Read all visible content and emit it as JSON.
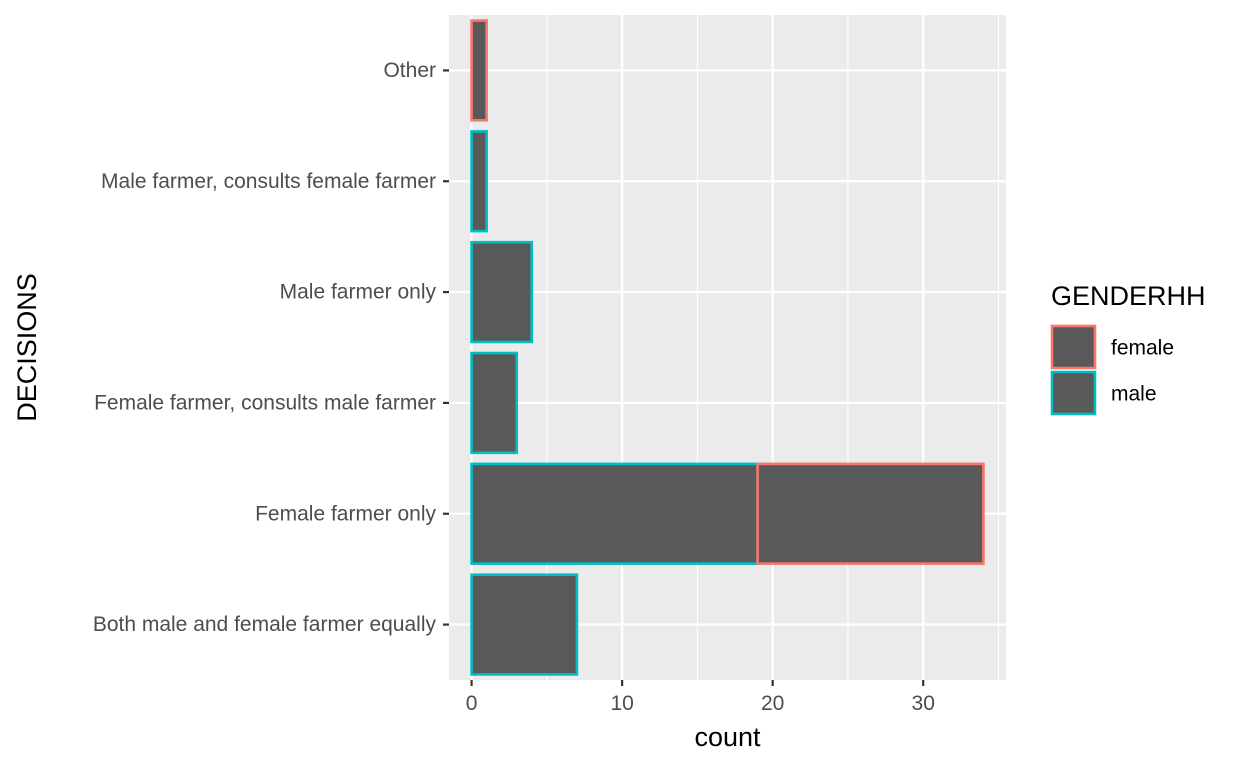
{
  "chart_data": {
    "type": "bar",
    "orientation": "horizontal",
    "stacked": true,
    "categories": [
      "Both male and female farmer equally",
      "Female farmer only",
      "Female farmer, consults male farmer",
      "Male farmer only",
      "Male farmer, consults female farmer",
      "Other"
    ],
    "series": [
      {
        "name": "male",
        "values": [
          7,
          19,
          3,
          4,
          1,
          0
        ]
      },
      {
        "name": "female",
        "values": [
          0,
          15,
          0,
          0,
          0,
          1
        ]
      }
    ],
    "stack_order": [
      "male",
      "female"
    ],
    "xlabel": "count",
    "ylabel": "DECISIONS",
    "xlim": [
      -1.5,
      35.5
    ],
    "xticks": [
      0,
      10,
      20,
      30
    ],
    "grid": true,
    "panel_background": "#ebebeb",
    "bar_fill": "#595959",
    "legend": {
      "title": "GENDERHH",
      "position": "right",
      "entries": [
        {
          "name": "female",
          "color": "#f8766d"
        },
        {
          "name": "male",
          "color": "#00bfc4"
        }
      ]
    }
  }
}
